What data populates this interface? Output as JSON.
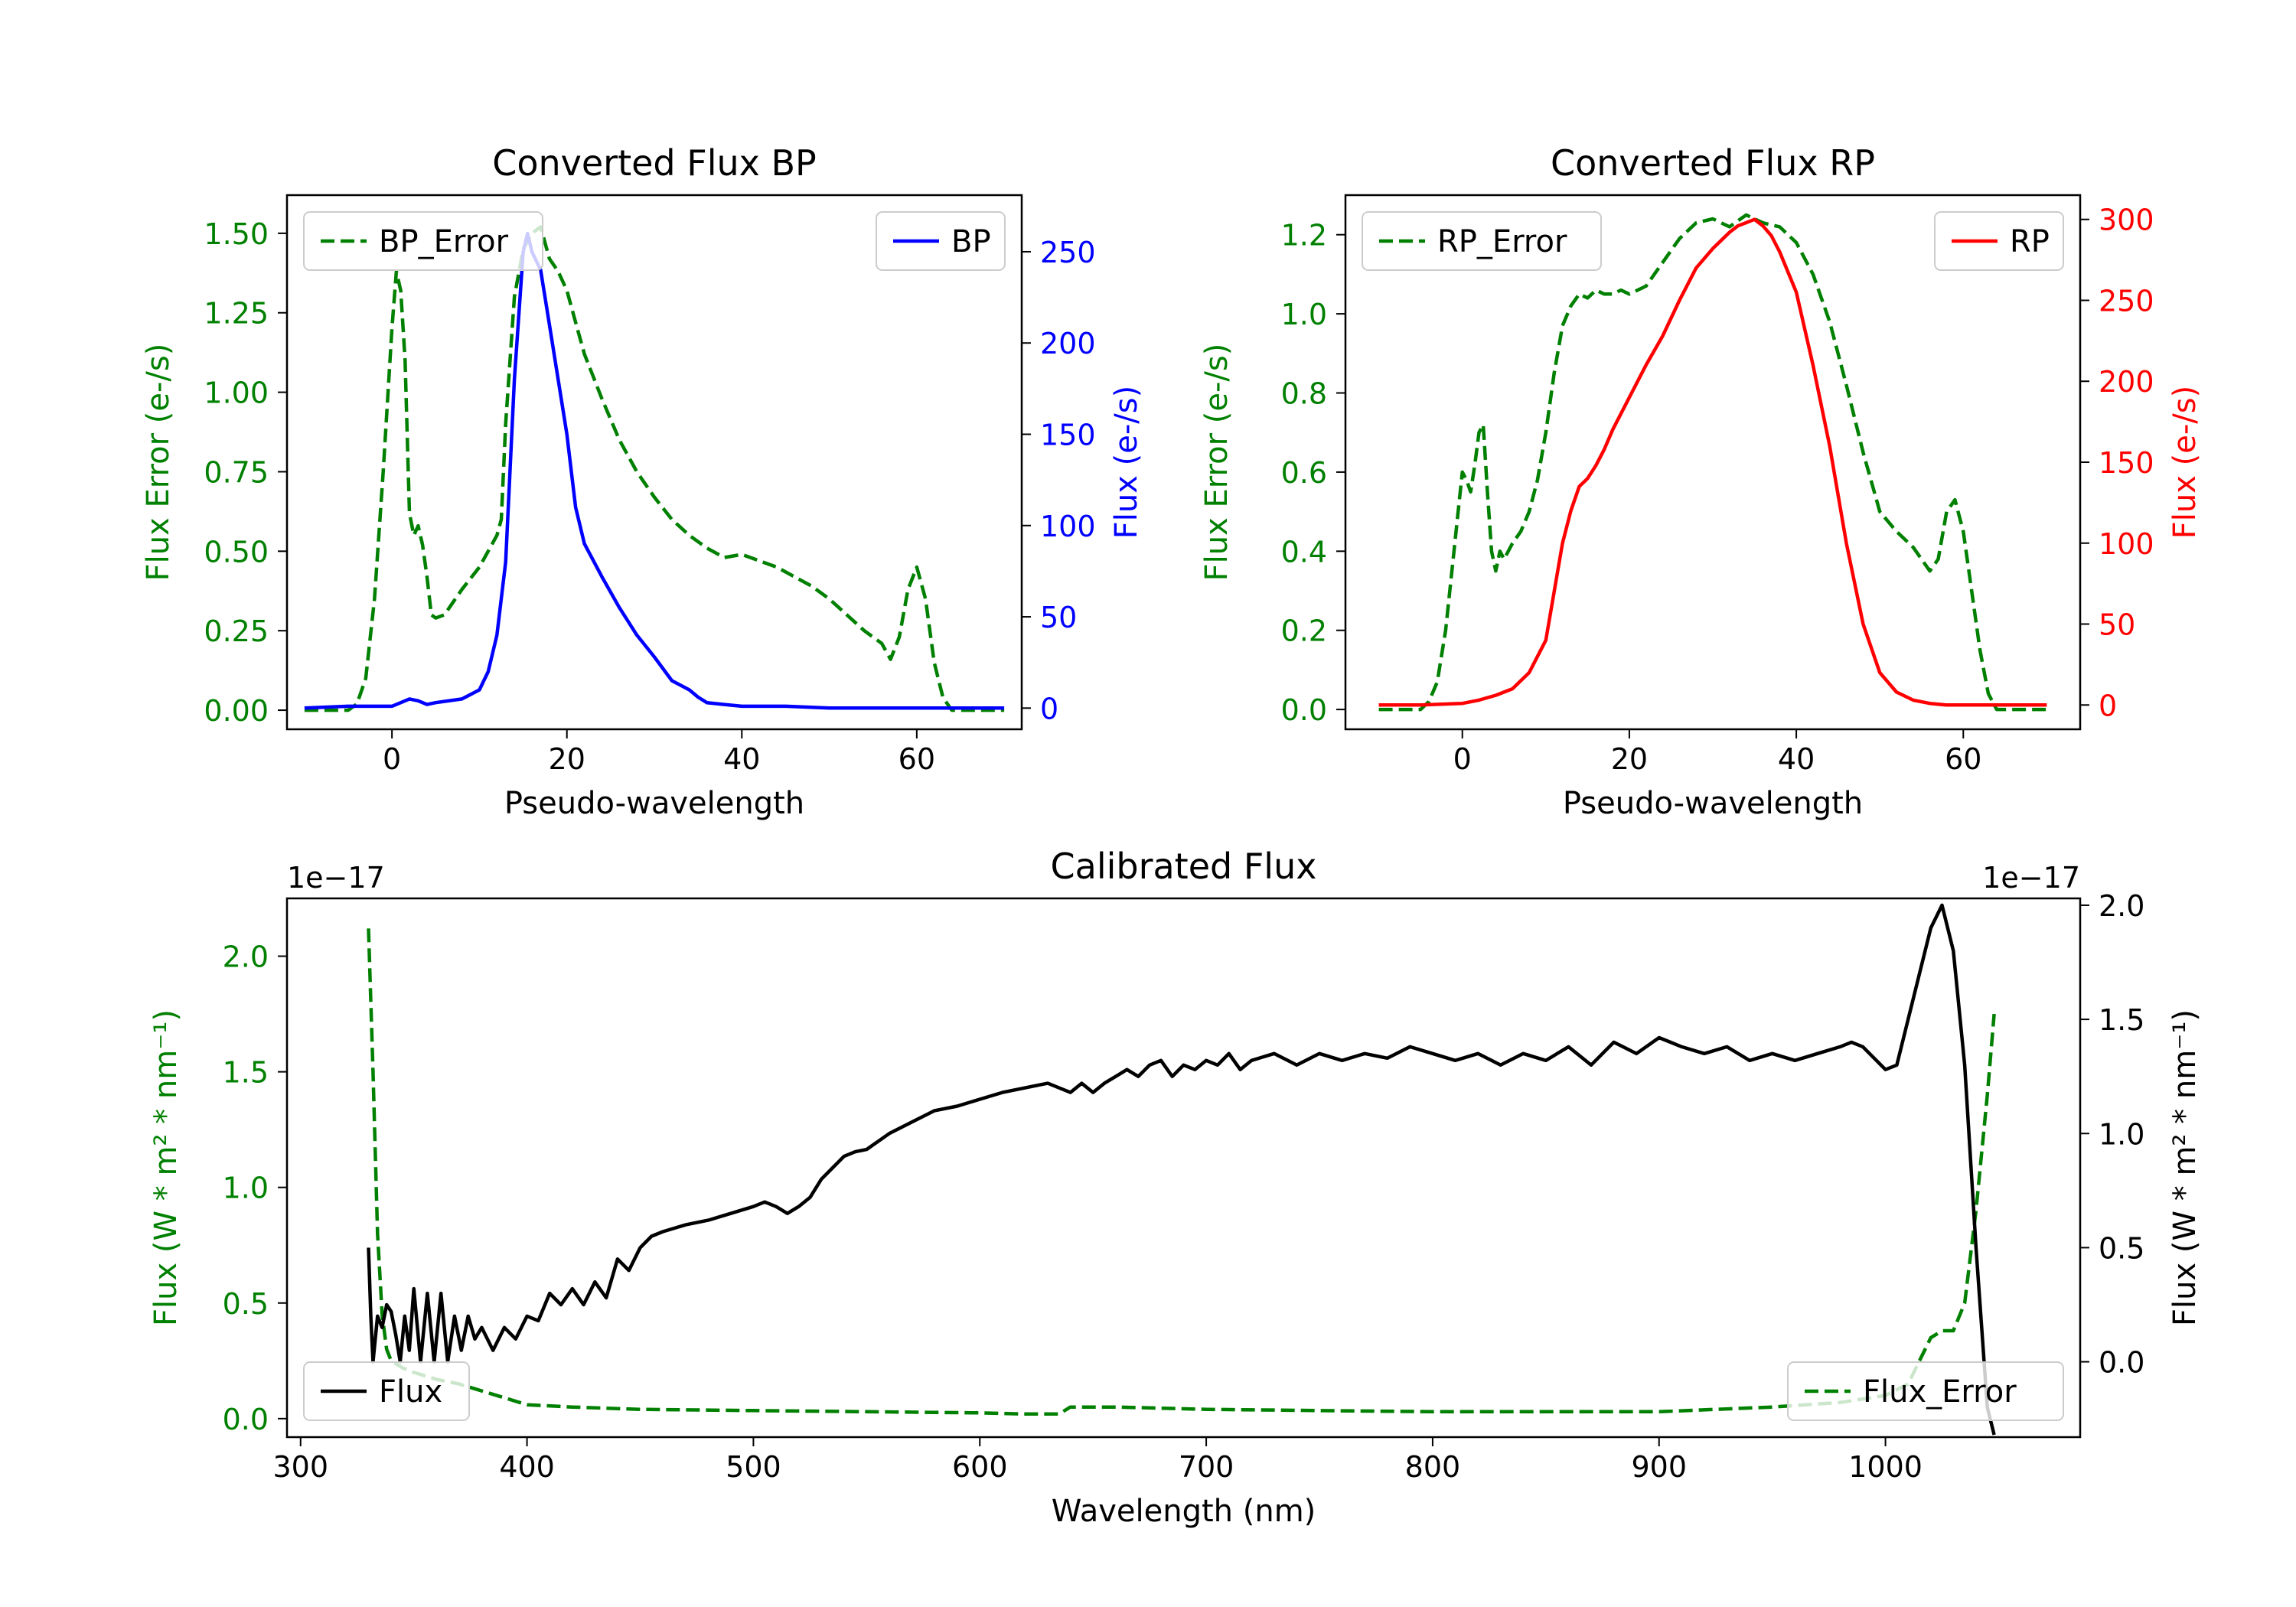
{
  "chart_data": [
    {
      "id": "bp",
      "type": "line",
      "title": "Converted Flux BP",
      "xlabel": "Pseudo-wavelength",
      "ylabel_left": "Flux Error (e-/s)",
      "ylabel_right": "Flux (e-/s)",
      "xlim": [
        -12,
        72
      ],
      "ylim_left": [
        -0.06,
        1.62
      ],
      "ylim_right": [
        -11.6,
        281
      ],
      "xticks": [
        0,
        20,
        40,
        60
      ],
      "yticks_left": [
        0.0,
        0.25,
        0.5,
        0.75,
        1.0,
        1.25,
        1.5
      ],
      "ytick_labels_left": [
        "0.00",
        "0.25",
        "0.50",
        "0.75",
        "1.00",
        "1.25",
        "1.50"
      ],
      "yticks_right": [
        0,
        50,
        100,
        150,
        200,
        250
      ],
      "left_color": "#008000",
      "right_color": "#0000ff",
      "series": [
        {
          "name": "BP_Error",
          "axis": "left",
          "style": "dashed",
          "color": "#008000",
          "x": [
            -10,
            -5,
            -4,
            -3,
            -2,
            -1,
            0,
            0.5,
            1,
            1.5,
            2,
            2.5,
            3,
            3.5,
            4,
            4.5,
            5,
            6,
            7,
            8,
            10,
            12,
            12.5,
            13,
            14,
            15,
            16,
            17,
            18,
            19,
            20,
            21,
            22,
            24,
            26,
            28,
            30,
            32,
            34,
            36,
            38,
            40,
            42,
            44,
            46,
            48,
            50,
            52,
            54,
            56,
            57,
            58,
            59,
            60,
            61,
            62,
            63,
            64,
            65,
            70
          ],
          "values": [
            0.0,
            0.0,
            0.02,
            0.1,
            0.35,
            0.75,
            1.2,
            1.38,
            1.32,
            1.1,
            0.62,
            0.55,
            0.58,
            0.52,
            0.42,
            0.3,
            0.29,
            0.3,
            0.34,
            0.38,
            0.45,
            0.55,
            0.6,
            0.9,
            1.3,
            1.45,
            1.5,
            1.52,
            1.42,
            1.38,
            1.32,
            1.22,
            1.12,
            0.98,
            0.85,
            0.75,
            0.67,
            0.6,
            0.55,
            0.51,
            0.48,
            0.49,
            0.47,
            0.45,
            0.42,
            0.39,
            0.35,
            0.3,
            0.25,
            0.21,
            0.16,
            0.23,
            0.38,
            0.45,
            0.35,
            0.15,
            0.04,
            0.0,
            0.0,
            0.0
          ]
        },
        {
          "name": "BP",
          "axis": "right",
          "style": "solid",
          "color": "#0000ff",
          "x": [
            -10,
            -5,
            0,
            1,
            2,
            3,
            4,
            5,
            8,
            10,
            11,
            12,
            13,
            14,
            15,
            15.5,
            16,
            17,
            18,
            19,
            20,
            21,
            22,
            24,
            26,
            28,
            30,
            32,
            34,
            35,
            36,
            38,
            40,
            42,
            45,
            50,
            55,
            60,
            65,
            70
          ],
          "values": [
            0,
            1,
            1,
            3,
            5,
            4,
            2,
            3,
            5,
            10,
            20,
            40,
            80,
            180,
            250,
            260,
            250,
            240,
            210,
            180,
            150,
            110,
            90,
            72,
            55,
            40,
            28,
            15,
            10,
            6,
            3,
            2,
            1,
            1,
            1,
            0,
            0,
            0,
            0,
            0
          ]
        }
      ],
      "legend": [
        {
          "label": "BP_Error",
          "position": "upper-left"
        },
        {
          "label": "BP",
          "position": "upper-right"
        }
      ]
    },
    {
      "id": "rp",
      "type": "line",
      "title": "Converted Flux RP",
      "xlabel": "Pseudo-wavelength",
      "ylabel_left": "Flux Error (e-/s)",
      "ylabel_right": "Flux (e-/s)",
      "xlim": [
        -14,
        74
      ],
      "ylim_left": [
        -0.05,
        1.3
      ],
      "ylim_right": [
        -15,
        315
      ],
      "xticks": [
        0,
        20,
        40,
        60
      ],
      "yticks_left": [
        0.0,
        0.2,
        0.4,
        0.6,
        0.8,
        1.0,
        1.2
      ],
      "ytick_labels_left": [
        "0.0",
        "0.2",
        "0.4",
        "0.6",
        "0.8",
        "1.0",
        "1.2"
      ],
      "yticks_right": [
        0,
        50,
        100,
        150,
        200,
        250,
        300
      ],
      "left_color": "#008000",
      "right_color": "#ff0000",
      "series": [
        {
          "name": "RP_Error",
          "axis": "left",
          "style": "dashed",
          "color": "#008000",
          "x": [
            -10,
            -5,
            -4,
            -3,
            -2,
            -1,
            0,
            0.5,
            1,
            1.5,
            2,
            2.5,
            3,
            3.5,
            4,
            4.5,
            5,
            6,
            7,
            8,
            9,
            10,
            11,
            12,
            13,
            14,
            15,
            16,
            17,
            18,
            19,
            20,
            22,
            24,
            26,
            28,
            30,
            32,
            34,
            36,
            38,
            40,
            42,
            44,
            46,
            48,
            50,
            52,
            54,
            55,
            56,
            57,
            58,
            59,
            60,
            61,
            62,
            63,
            64,
            65,
            70
          ],
          "values": [
            0.0,
            0.0,
            0.02,
            0.07,
            0.2,
            0.4,
            0.6,
            0.58,
            0.55,
            0.62,
            0.7,
            0.72,
            0.55,
            0.4,
            0.35,
            0.4,
            0.38,
            0.42,
            0.45,
            0.5,
            0.58,
            0.7,
            0.85,
            0.97,
            1.02,
            1.05,
            1.04,
            1.06,
            1.05,
            1.05,
            1.06,
            1.05,
            1.07,
            1.13,
            1.19,
            1.23,
            1.24,
            1.22,
            1.25,
            1.23,
            1.22,
            1.18,
            1.1,
            0.98,
            0.82,
            0.65,
            0.5,
            0.45,
            0.41,
            0.38,
            0.35,
            0.38,
            0.5,
            0.53,
            0.45,
            0.3,
            0.15,
            0.04,
            0.0,
            0.0,
            0.0
          ]
        },
        {
          "name": "RP",
          "axis": "right",
          "style": "solid",
          "color": "#ff0000",
          "x": [
            -10,
            -5,
            0,
            2,
            4,
            6,
            8,
            10,
            11,
            12,
            13,
            14,
            15,
            16,
            17,
            18,
            20,
            22,
            24,
            26,
            28,
            30,
            32,
            33,
            34,
            35,
            36,
            37,
            38,
            40,
            42,
            44,
            46,
            48,
            50,
            52,
            54,
            56,
            58,
            60,
            65,
            70
          ],
          "values": [
            0,
            0,
            1,
            3,
            6,
            10,
            20,
            40,
            70,
            100,
            120,
            135,
            140,
            148,
            158,
            170,
            190,
            210,
            228,
            250,
            270,
            282,
            292,
            296,
            298,
            300,
            296,
            290,
            280,
            255,
            210,
            160,
            100,
            50,
            20,
            8,
            3,
            1,
            0,
            0,
            0,
            0
          ]
        }
      ],
      "legend": [
        {
          "label": "RP_Error",
          "position": "upper-left"
        },
        {
          "label": "RP",
          "position": "upper-right"
        }
      ]
    },
    {
      "id": "cal",
      "type": "line",
      "title": "Calibrated Flux",
      "xlabel": "Wavelength (nm)",
      "ylabel_left": "Flux (W * m² * nm⁻¹)",
      "ylabel_right": "Flux (W * m² * nm⁻¹)",
      "offset_left": "1e−17",
      "offset_right": "1e−17",
      "xlim": [
        294,
        1086
      ],
      "ylim_left": [
        -0.08,
        2.25
      ],
      "ylim_right": [
        -0.33,
        2.03
      ],
      "xticks": [
        300,
        400,
        500,
        600,
        700,
        800,
        900,
        1000
      ],
      "yticks_left": [
        0.0,
        0.5,
        1.0,
        1.5,
        2.0
      ],
      "ytick_labels_left": [
        "0.0",
        "0.5",
        "1.0",
        "1.5",
        "2.0"
      ],
      "yticks_right": [
        0.0,
        0.5,
        1.0,
        1.5,
        2.0
      ],
      "ytick_labels_right": [
        "0.0",
        "0.5",
        "1.0",
        "1.5",
        "2.0"
      ],
      "left_color": "#008000",
      "right_color": "#000000",
      "series": [
        {
          "name": "Flux_Error",
          "axis": "left",
          "style": "dashed",
          "color": "#008000",
          "x": [
            330,
            332,
            334,
            336,
            338,
            340,
            345,
            350,
            360,
            370,
            380,
            390,
            400,
            420,
            450,
            500,
            550,
            600,
            620,
            635,
            640,
            660,
            700,
            750,
            800,
            850,
            900,
            950,
            980,
            1000,
            1010,
            1015,
            1020,
            1025,
            1030,
            1035,
            1040,
            1045,
            1048
          ],
          "values": [
            2.12,
            1.5,
            0.8,
            0.45,
            0.3,
            0.25,
            0.22,
            0.2,
            0.17,
            0.15,
            0.12,
            0.09,
            0.06,
            0.05,
            0.04,
            0.035,
            0.03,
            0.025,
            0.02,
            0.02,
            0.05,
            0.05,
            0.04,
            0.035,
            0.03,
            0.03,
            0.03,
            0.05,
            0.07,
            0.1,
            0.15,
            0.25,
            0.35,
            0.38,
            0.38,
            0.5,
            0.9,
            1.4,
            1.75
          ]
        },
        {
          "name": "Flux",
          "axis": "right",
          "style": "solid",
          "color": "#000000",
          "x": [
            330,
            331,
            332,
            334,
            336,
            338,
            340,
            342,
            344,
            346,
            348,
            350,
            353,
            356,
            359,
            362,
            365,
            368,
            371,
            374,
            377,
            380,
            385,
            390,
            395,
            400,
            405,
            410,
            415,
            420,
            425,
            430,
            435,
            440,
            445,
            450,
            455,
            460,
            470,
            480,
            490,
            500,
            505,
            510,
            515,
            520,
            525,
            530,
            535,
            540,
            545,
            550,
            560,
            570,
            580,
            590,
            600,
            610,
            620,
            630,
            635,
            640,
            645,
            650,
            655,
            660,
            665,
            670,
            675,
            680,
            685,
            690,
            695,
            700,
            705,
            710,
            715,
            720,
            730,
            740,
            750,
            760,
            770,
            780,
            790,
            800,
            810,
            820,
            830,
            840,
            850,
            860,
            870,
            880,
            890,
            900,
            905,
            910,
            920,
            930,
            940,
            950,
            960,
            970,
            980,
            985,
            990,
            1000,
            1005,
            1010,
            1015,
            1020,
            1025,
            1030,
            1035,
            1040,
            1045,
            1048
          ],
          "values": [
            0.5,
            0.2,
            0.0,
            0.2,
            0.15,
            0.25,
            0.22,
            0.12,
            0.0,
            0.2,
            0.05,
            0.32,
            0.0,
            0.3,
            0.0,
            0.3,
            0.0,
            0.2,
            0.05,
            0.2,
            0.1,
            0.15,
            0.05,
            0.15,
            0.1,
            0.2,
            0.18,
            0.3,
            0.25,
            0.32,
            0.25,
            0.35,
            0.28,
            0.45,
            0.4,
            0.5,
            0.55,
            0.57,
            0.6,
            0.62,
            0.65,
            0.68,
            0.7,
            0.68,
            0.65,
            0.68,
            0.72,
            0.8,
            0.85,
            0.9,
            0.92,
            0.93,
            1.0,
            1.05,
            1.1,
            1.12,
            1.15,
            1.18,
            1.2,
            1.22,
            1.2,
            1.18,
            1.22,
            1.18,
            1.22,
            1.25,
            1.28,
            1.25,
            1.3,
            1.32,
            1.25,
            1.3,
            1.28,
            1.32,
            1.3,
            1.35,
            1.28,
            1.32,
            1.35,
            1.3,
            1.35,
            1.32,
            1.35,
            1.33,
            1.38,
            1.35,
            1.32,
            1.35,
            1.3,
            1.35,
            1.32,
            1.38,
            1.3,
            1.4,
            1.35,
            1.42,
            1.4,
            1.38,
            1.35,
            1.38,
            1.32,
            1.35,
            1.32,
            1.35,
            1.38,
            1.4,
            1.38,
            1.28,
            1.3,
            1.5,
            1.7,
            1.9,
            2.0,
            1.8,
            1.3,
            0.5,
            -0.2,
            -0.32
          ]
        }
      ],
      "legend": [
        {
          "label": "Flux",
          "position": "lower-left"
        },
        {
          "label": "Flux_Error",
          "position": "lower-right"
        }
      ]
    }
  ]
}
